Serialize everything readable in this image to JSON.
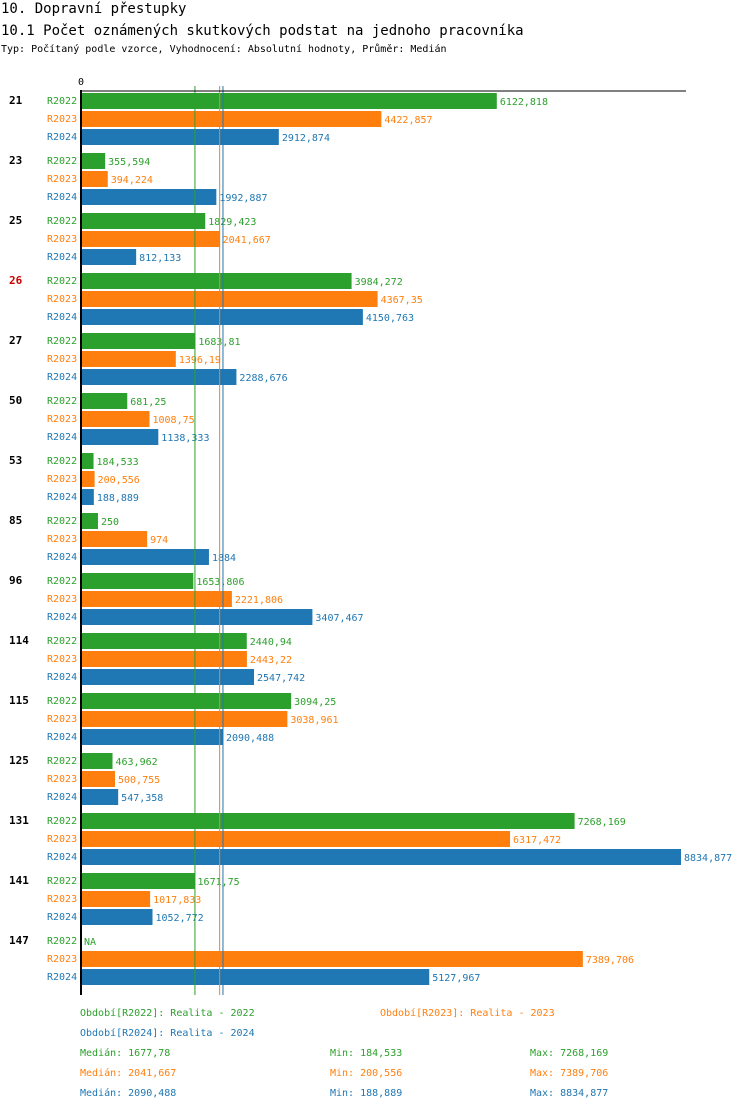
{
  "header": {
    "section": "10. Dopravní přestupky",
    "subtitle": "10.1 Počet oznámených skutkových podstat na jednoho pracovníka",
    "meta": "Typ: Počítaný podle vzorce, Vyhodnocení: Absolutní hodnoty, Průměr: Medián"
  },
  "colors": {
    "R2022": "#2ca02c",
    "R2023": "#ff7f0e",
    "R2024": "#1f77b4",
    "highlight": "#cc0000",
    "axis": "#000000"
  },
  "chart_data": {
    "type": "bar",
    "orientation": "horizontal",
    "title": "10.1 Počet oznámených skutkových podstat na jednoho pracovníka",
    "xlim": [
      0,
      8834.877
    ],
    "x_tick_label": "0",
    "series_names": [
      "R2022",
      "R2023",
      "R2024"
    ],
    "categories": [
      {
        "label": "21",
        "highlight": false,
        "values": [
          "6122,818",
          "4422,857",
          "2912,874"
        ]
      },
      {
        "label": "23",
        "highlight": false,
        "values": [
          "355,594",
          "394,224",
          "1992,887"
        ]
      },
      {
        "label": "25",
        "highlight": false,
        "values": [
          "1829,423",
          "2041,667",
          "812,133"
        ]
      },
      {
        "label": "26",
        "highlight": true,
        "values": [
          "3984,272",
          "4367,35",
          "4150,763"
        ]
      },
      {
        "label": "27",
        "highlight": false,
        "values": [
          "1683,81",
          "1396,19",
          "2288,676"
        ]
      },
      {
        "label": "50",
        "highlight": false,
        "values": [
          "681,25",
          "1008,75",
          "1138,333"
        ]
      },
      {
        "label": "53",
        "highlight": false,
        "values": [
          "184,533",
          "200,556",
          "188,889"
        ]
      },
      {
        "label": "85",
        "highlight": false,
        "values": [
          "250",
          "974",
          "1884"
        ]
      },
      {
        "label": "96",
        "highlight": false,
        "values": [
          "1653,806",
          "2221,806",
          "3407,467"
        ]
      },
      {
        "label": "114",
        "highlight": false,
        "values": [
          "2440,94",
          "2443,22",
          "2547,742"
        ]
      },
      {
        "label": "115",
        "highlight": false,
        "values": [
          "3094,25",
          "3038,961",
          "2090,488"
        ]
      },
      {
        "label": "125",
        "highlight": false,
        "values": [
          "463,962",
          "500,755",
          "547,358"
        ]
      },
      {
        "label": "131",
        "highlight": false,
        "values": [
          "7268,169",
          "6317,472",
          "8834,877"
        ]
      },
      {
        "label": "141",
        "highlight": false,
        "values": [
          "1671,75",
          "1017,833",
          "1052,772"
        ]
      },
      {
        "label": "147",
        "highlight": false,
        "values": [
          "NA",
          "7389,706",
          "5127,967"
        ]
      }
    ],
    "median_lines": [
      1677.78,
      2041.667,
      2090.488
    ]
  },
  "legend": {
    "items": [
      "Období[R2022]: Realita - 2022",
      "Období[R2023]: Realita - 2023",
      "Období[R2024]: Realita - 2024"
    ],
    "stats": [
      {
        "median": "Medián: 1677,78",
        "min": "Min: 184,533",
        "max": "Max: 7268,169"
      },
      {
        "median": "Medián: 2041,667",
        "min": "Min: 200,556",
        "max": "Max: 7389,706"
      },
      {
        "median": "Medián: 2090,488",
        "min": "Min: 188,889",
        "max": "Max: 8834,877"
      }
    ]
  }
}
